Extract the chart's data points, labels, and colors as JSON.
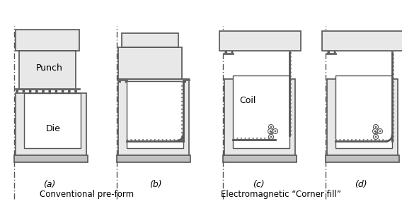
{
  "title": "",
  "background": "#ffffff",
  "labels": {
    "a": "(a)",
    "b": "(b)",
    "c": "(c)",
    "d": "(d)",
    "punch": "Punch",
    "die": "Die",
    "coil": "Coil",
    "caption_left": "Conventional pre-form",
    "caption_right": "Electromagnetic “Corner fill”"
  },
  "colors": {
    "fill_light": "#e8e8e8",
    "fill_dark": "#c0c0c0",
    "stroke": "#555555",
    "sheet": "#888888",
    "background": "#ffffff",
    "die_fill": "#d8d8d8"
  }
}
